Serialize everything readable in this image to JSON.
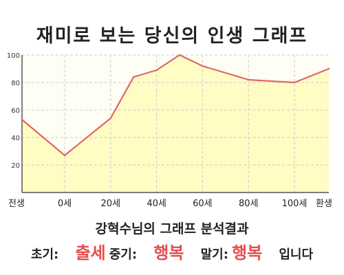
{
  "title": "재미로 보는 당신의 인생 그래프",
  "chart_data": {
    "type": "area",
    "x": [
      "전생",
      "0세",
      "20세",
      "40세",
      "60세",
      "80세",
      "100세",
      "환생"
    ],
    "points": [
      {
        "x": "전생",
        "y": 53
      },
      {
        "x": "0세",
        "y": 27
      },
      {
        "x": "20세",
        "y": 54
      },
      {
        "x": "30세",
        "y": 84
      },
      {
        "x": "40세",
        "y": 89
      },
      {
        "x": "50세",
        "y": 100
      },
      {
        "x": "60세",
        "y": 92
      },
      {
        "x": "80세",
        "y": 82
      },
      {
        "x": "100세",
        "y": 80
      },
      {
        "x": "환생",
        "y": 90
      }
    ],
    "yticks": [
      20,
      40,
      60,
      80,
      100
    ],
    "ylim": [
      0,
      100
    ],
    "grid": true,
    "colors": {
      "line": "#e06666",
      "fill": "#fffcc4",
      "grid": "#cccccc"
    }
  },
  "result": {
    "title": "강혁수님의 그래프 분석결과",
    "early_label": "초기:",
    "early_value": "출세",
    "mid_label": "중기:",
    "mid_value": "행복",
    "late_label": "말기:",
    "late_value": "행복",
    "ending": "입니다"
  }
}
